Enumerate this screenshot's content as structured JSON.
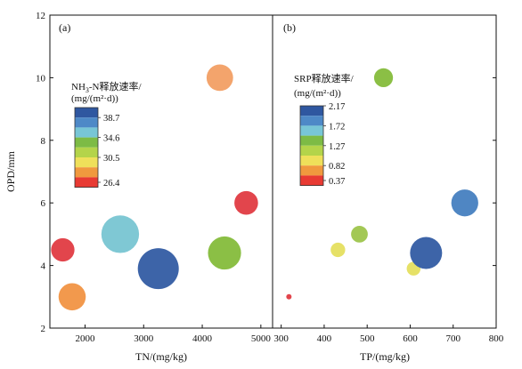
{
  "chart_data": [
    {
      "type": "scatter",
      "panel_label": "(a)",
      "xlabel": "TN/(mg/kg)",
      "ylabel": "OPD/mm",
      "xlim": [
        1400,
        5200
      ],
      "ylim": [
        2,
        12
      ],
      "xticks": [
        2000,
        3000,
        4000,
        5000
      ],
      "yticks": [
        2,
        4,
        6,
        8,
        10,
        12
      ],
      "legend": {
        "title_line1_main": "NH",
        "title_line1_sub": "3",
        "title_line1_rest": "-N释放速率/",
        "title_line2": "(mg/(m²·d))",
        "tick_labels": [
          "38.7",
          "34.6",
          "30.5",
          "26.4"
        ],
        "colors": [
          "#2f57a0",
          "#4e89c7",
          "#78c6d6",
          "#7dbb45",
          "#b4d44a",
          "#efe05a",
          "#f0993e",
          "#e83a33"
        ],
        "placement": "upper-left"
      },
      "points": [
        {
          "x": 1620,
          "y": 4.5,
          "value": 26.6,
          "color": "#e2454c"
        },
        {
          "x": 1780,
          "y": 3.0,
          "value": 29.5,
          "color": "#f2994d"
        },
        {
          "x": 2600,
          "y": 5.0,
          "value": 37.5,
          "color": "#7fc8d4"
        },
        {
          "x": 3250,
          "y": 3.9,
          "value": 40.0,
          "color": "#3d64a8"
        },
        {
          "x": 4300,
          "y": 10.0,
          "value": 29.0,
          "color": "#f3a46c"
        },
        {
          "x": 4380,
          "y": 4.4,
          "value": 34.0,
          "color": "#8bbf45"
        },
        {
          "x": 4750,
          "y": 6.0,
          "value": 26.8,
          "color": "#e2454c"
        }
      ],
      "point_size": {
        "min_value": 26.4,
        "max_value": 40.0,
        "min_radius": 13,
        "max_radius": 23
      }
    },
    {
      "type": "scatter",
      "panel_label": "(b)",
      "xlabel": "TP/(mg/kg)",
      "ylabel": "",
      "xlim": [
        280,
        800
      ],
      "ylim": [
        2,
        12
      ],
      "xticks": [
        300,
        400,
        500,
        600,
        700,
        800
      ],
      "yticks": [
        2,
        4,
        6,
        8,
        10,
        12
      ],
      "legend": {
        "title_line1": "SRP释放速率/",
        "title_line2": "(mg/(m²·d))",
        "tick_labels": [
          "2.17",
          "1.72",
          "1.27",
          "0.82",
          "0.37"
        ],
        "colors": [
          "#2f57a0",
          "#4e89c7",
          "#78c6d6",
          "#7dbb45",
          "#b4d44a",
          "#efe05a",
          "#f0993e",
          "#e83a33"
        ],
        "placement": "upper-left"
      },
      "points": [
        {
          "x": 318,
          "y": 3.0,
          "value": 0.37,
          "color": "#e2454c"
        },
        {
          "x": 432,
          "y": 4.5,
          "value": 1.0,
          "color": "#e6e167"
        },
        {
          "x": 482,
          "y": 5.0,
          "value": 1.15,
          "color": "#a3c855"
        },
        {
          "x": 538,
          "y": 10.0,
          "value": 1.3,
          "color": "#8bbf45"
        },
        {
          "x": 608,
          "y": 3.9,
          "value": 0.95,
          "color": "#e6e167"
        },
        {
          "x": 637,
          "y": 4.4,
          "value": 2.2,
          "color": "#3d64a8"
        },
        {
          "x": 727,
          "y": 6.0,
          "value": 1.85,
          "color": "#4f86c3"
        }
      ],
      "point_size": {
        "min_value": 0.37,
        "max_value": 2.2,
        "min_radius": 3,
        "max_radius": 18
      }
    }
  ]
}
